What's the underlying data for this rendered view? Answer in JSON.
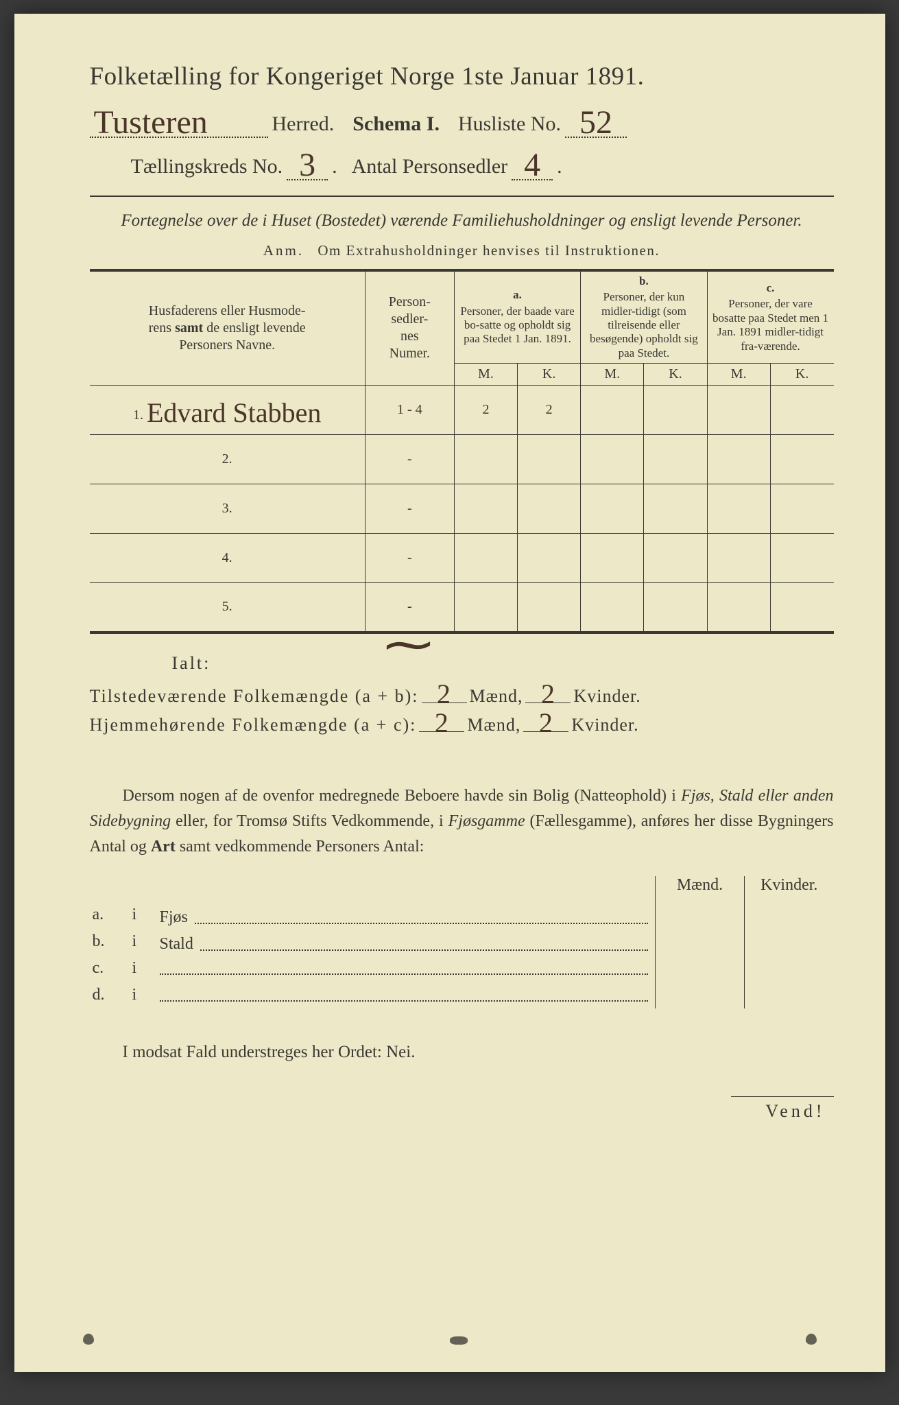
{
  "title": "Folketælling for Kongeriget Norge 1ste Januar 1891.",
  "header": {
    "herred_hw": "Tusteren",
    "herred_label": "Herred.",
    "schema": "Schema I.",
    "husliste_label": "Husliste No.",
    "husliste_hw": "52",
    "kreds_label": "Tællingskreds No.",
    "kreds_hw": "3",
    "antal_label": "Antal Personsedler",
    "antal_hw": "4"
  },
  "subtitle": "Fortegnelse over de i Huset (Bostedet) værende Familiehusholdninger og ensligt levende Personer.",
  "anm_label": "Anm.",
  "anm_text": "Om Extrahusholdninger henvises til Instruktionen.",
  "table": {
    "head_name": "Husfaderens eller Husmoderens samt de ensligt levende Personers Navne.",
    "head_num": "Person-\nsedler-\nnes\nNumer.",
    "col_a": "Personer, der baade vare bo-satte og opholdt sig paa Stedet 1 Jan. 1891.",
    "col_a_abc": "a.",
    "col_b": "Personer, der kun midler-tidigt (som tilreisende eller besøgende) opholdt sig paa Stedet.",
    "col_b_abc": "b.",
    "col_c": "Personer, der vare bosatte paa Stedet men 1 Jan. 1891 midler-tidigt fra-værende.",
    "col_c_abc": "c.",
    "mk_m": "M.",
    "mk_k": "K.",
    "rows": [
      {
        "n": "1.",
        "name_hw": "Edvard Stabben",
        "num_hw": "1 - 4",
        "a_m": "2",
        "a_k": "2",
        "b_m": "",
        "b_k": "",
        "c_m": "",
        "c_k": ""
      },
      {
        "n": "2.",
        "name_hw": "",
        "num_hw": "-",
        "a_m": "",
        "a_k": "",
        "b_m": "",
        "b_k": "",
        "c_m": "",
        "c_k": ""
      },
      {
        "n": "3.",
        "name_hw": "",
        "num_hw": "-",
        "a_m": "",
        "a_k": "",
        "b_m": "",
        "b_k": "",
        "c_m": "",
        "c_k": ""
      },
      {
        "n": "4.",
        "name_hw": "",
        "num_hw": "-",
        "a_m": "",
        "a_k": "",
        "b_m": "",
        "b_k": "",
        "c_m": "",
        "c_k": ""
      },
      {
        "n": "5.",
        "name_hw": "",
        "num_hw": "-",
        "a_m": "",
        "a_k": "",
        "b_m": "",
        "b_k": "",
        "c_m": "",
        "c_k": ""
      }
    ]
  },
  "totals": {
    "ialt": "Ialt:",
    "line1_label": "Tilstedeværende Folkemængde (a + b):",
    "line2_label": "Hjemmehørende Folkemængde (a + c):",
    "maend": "Mænd,",
    "kvinder": "Kvinder.",
    "l1_m": "2",
    "l1_k": "2",
    "l2_m": "2",
    "l2_k": "2"
  },
  "paragraph": "Dersom nogen af de ovenfor medregnede Beboere havde sin Bolig (Natteophold) i <em>Fjøs, Stald eller anden Sidebygning</em> eller, for Tromsø Stifts Vedkommende, i <em>Fjøsgamme</em> (Fællesgamme), anføres her disse Bygningers Antal og <span class=\"bold\">Art</span> samt vedkommende Personers Antal:",
  "side": {
    "m": "Mænd.",
    "k": "Kvinder.",
    "rows": [
      {
        "letter": "a.",
        "kind": "Fjøs"
      },
      {
        "letter": "b.",
        "kind": "Stald"
      },
      {
        "letter": "c.",
        "kind": ""
      },
      {
        "letter": "d.",
        "kind": ""
      }
    ]
  },
  "nei_line": "I modsat Fald understreges her Ordet: Nei.",
  "vend": "Vend!",
  "colors": {
    "paper": "#ece8c8",
    "ink": "#3a3832",
    "handwriting": "#4a3528"
  }
}
